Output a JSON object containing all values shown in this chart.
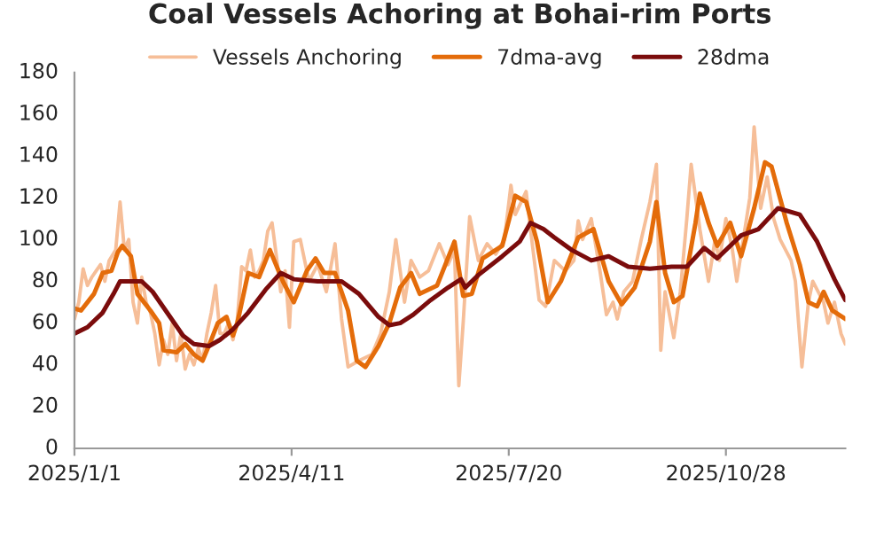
{
  "chart_data": {
    "type": "line",
    "title": "Coal Vessels Achoring at Bohai-rim Ports",
    "xlim": [
      "2025-01-01",
      "2025-12-22"
    ],
    "xticks": [
      {
        "value": "2025-01-01",
        "label": "2025/1/1"
      },
      {
        "value": "2025-04-11",
        "label": "2025/4/11"
      },
      {
        "value": "2025-07-20",
        "label": "2025/7/20"
      },
      {
        "value": "2025-10-28",
        "label": "2025/10/28"
      }
    ],
    "ylim": [
      0,
      180
    ],
    "yticks": [
      0,
      20,
      40,
      60,
      80,
      100,
      120,
      140,
      160,
      180
    ],
    "grid": false,
    "legend": "top",
    "marker": "none",
    "line_style": "solid",
    "series": [
      {
        "name": "Vessels Anchoring",
        "color": "#f6be98",
        "x": [
          "2025-01-01",
          "2025-01-03",
          "2025-01-05",
          "2025-01-07",
          "2025-01-09",
          "2025-01-11",
          "2025-01-13",
          "2025-01-15",
          "2025-01-17",
          "2025-01-20",
          "2025-01-22",
          "2025-01-24",
          "2025-01-26",
          "2025-01-28",
          "2025-01-30",
          "2025-02-01",
          "2025-02-03",
          "2025-02-05",
          "2025-02-07",
          "2025-02-09",
          "2025-02-11",
          "2025-02-13",
          "2025-02-15",
          "2025-02-17",
          "2025-02-19",
          "2025-02-21",
          "2025-02-23",
          "2025-02-25",
          "2025-02-27",
          "2025-03-01",
          "2025-03-03",
          "2025-03-05",
          "2025-03-07",
          "2025-03-09",
          "2025-03-11",
          "2025-03-13",
          "2025-03-15",
          "2025-03-17",
          "2025-03-19",
          "2025-03-21",
          "2025-03-23",
          "2025-03-25",
          "2025-03-27",
          "2025-03-29",
          "2025-03-31",
          "2025-04-02",
          "2025-04-04",
          "2025-04-06",
          "2025-04-08",
          "2025-04-10",
          "2025-04-12",
          "2025-04-15",
          "2025-04-19",
          "2025-04-23",
          "2025-04-27",
          "2025-05-01",
          "2025-05-04",
          "2025-05-07",
          "2025-05-12",
          "2025-05-18",
          "2025-05-22",
          "2025-05-26",
          "2025-05-29",
          "2025-06-02",
          "2025-06-05",
          "2025-06-09",
          "2025-06-13",
          "2025-06-18",
          "2025-06-22",
          "2025-06-25",
          "2025-06-27",
          "2025-06-29",
          "2025-07-02",
          "2025-07-06",
          "2025-07-10",
          "2025-07-14",
          "2025-07-18",
          "2025-07-21",
          "2025-07-23",
          "2025-07-28",
          "2025-07-30",
          "2025-08-03",
          "2025-08-06",
          "2025-08-10",
          "2025-08-15",
          "2025-08-19",
          "2025-08-21",
          "2025-08-23",
          "2025-08-27",
          "2025-08-31",
          "2025-09-03",
          "2025-09-06",
          "2025-09-08",
          "2025-09-11",
          "2025-09-15",
          "2025-09-19",
          "2025-09-23",
          "2025-09-26",
          "2025-09-28",
          "2025-09-30",
          "2025-10-04",
          "2025-10-07",
          "2025-10-10",
          "2025-10-12",
          "2025-10-16",
          "2025-10-20",
          "2025-10-23",
          "2025-10-25",
          "2025-10-28",
          "2025-10-31",
          "2025-11-02",
          "2025-11-05",
          "2025-11-08",
          "2025-11-10",
          "2025-11-13",
          "2025-11-16",
          "2025-11-19",
          "2025-11-22",
          "2025-11-27",
          "2025-11-29",
          "2025-12-02",
          "2025-12-05",
          "2025-12-07",
          "2025-12-12",
          "2025-12-14",
          "2025-12-17",
          "2025-12-20",
          "2025-12-22"
        ],
        "values": [
          62,
          70,
          86,
          78,
          82,
          85,
          88,
          80,
          90,
          95,
          118,
          95,
          100,
          70,
          60,
          82,
          70,
          65,
          55,
          40,
          52,
          45,
          60,
          42,
          55,
          38,
          45,
          40,
          48,
          42,
          55,
          65,
          78,
          55,
          55,
          60,
          52,
          62,
          87,
          85,
          95,
          82,
          85,
          90,
          104,
          108,
          92,
          75,
          85,
          58,
          99,
          100,
          80,
          88,
          75,
          98,
          62,
          39,
          42,
          45,
          55,
          75,
          100,
          70,
          90,
          82,
          85,
          98,
          88,
          95,
          30,
          60,
          111,
          90,
          98,
          93,
          100,
          126,
          112,
          123,
          105,
          71,
          68,
          90,
          85,
          90,
          109,
          100,
          110,
          85,
          64,
          70,
          62,
          75,
          80,
          100,
          118,
          136,
          47,
          75,
          53,
          75,
          110,
          136,
          105,
          80,
          100,
          90,
          110,
          95,
          80,
          100,
          120,
          154,
          115,
          130,
          110,
          100,
          90,
          80,
          39,
          70,
          80,
          70,
          60,
          70,
          55,
          50
        ]
      },
      {
        "name": "7dma-avg",
        "color": "#e46c0a",
        "x": [
          "2025-01-01",
          "2025-01-04",
          "2025-01-10",
          "2025-01-14",
          "2025-01-18",
          "2025-01-21",
          "2025-01-23",
          "2025-01-27",
          "2025-01-30",
          "2025-02-05",
          "2025-02-09",
          "2025-02-11",
          "2025-02-17",
          "2025-02-21",
          "2025-02-25",
          "2025-03-01",
          "2025-03-05",
          "2025-03-08",
          "2025-03-12",
          "2025-03-15",
          "2025-03-17",
          "2025-03-22",
          "2025-03-27",
          "2025-04-01",
          "2025-04-07",
          "2025-04-12",
          "2025-04-18",
          "2025-04-22",
          "2025-04-26",
          "2025-05-01",
          "2025-05-07",
          "2025-05-11",
          "2025-05-15",
          "2025-05-21",
          "2025-05-26",
          "2025-05-31",
          "2025-06-05",
          "2025-06-09",
          "2025-06-17",
          "2025-06-25",
          "2025-06-29",
          "2025-07-03",
          "2025-07-08",
          "2025-07-17",
          "2025-07-23",
          "2025-07-28",
          "2025-08-02",
          "2025-08-07",
          "2025-08-13",
          "2025-08-21",
          "2025-08-28",
          "2025-09-04",
          "2025-09-10",
          "2025-09-16",
          "2025-09-23",
          "2025-09-26",
          "2025-09-30",
          "2025-10-04",
          "2025-10-08",
          "2025-10-14",
          "2025-10-16",
          "2025-10-20",
          "2025-10-24",
          "2025-10-30",
          "2025-11-04",
          "2025-11-10",
          "2025-11-15",
          "2025-11-18",
          "2025-11-25",
          "2025-12-01",
          "2025-12-05",
          "2025-12-09",
          "2025-12-12",
          "2025-12-16",
          "2025-12-22"
        ],
        "values": [
          67,
          66,
          74,
          84,
          85,
          94,
          97,
          92,
          74,
          66,
          60,
          47,
          46,
          50,
          45,
          42,
          52,
          60,
          63,
          54,
          60,
          84,
          82,
          95,
          80,
          70,
          85,
          91,
          84,
          84,
          66,
          42,
          39,
          49,
          60,
          77,
          84,
          74,
          78,
          99,
          73,
          74,
          91,
          97,
          121,
          118,
          99,
          70,
          80,
          101,
          105,
          80,
          69,
          77,
          99,
          118,
          84,
          70,
          73,
          108,
          122,
          108,
          97,
          108,
          92,
          115,
          137,
          135,
          108,
          88,
          70,
          68,
          75,
          66,
          62
        ]
      },
      {
        "name": "28dma",
        "color": "#7b0c0c",
        "x": [
          "2025-01-01",
          "2025-01-07",
          "2025-01-14",
          "2025-01-19",
          "2025-01-22",
          "2025-02-01",
          "2025-02-06",
          "2025-02-14",
          "2025-02-20",
          "2025-02-25",
          "2025-03-04",
          "2025-03-09",
          "2025-03-15",
          "2025-03-22",
          "2025-03-30",
          "2025-04-06",
          "2025-04-12",
          "2025-04-23",
          "2025-05-04",
          "2025-05-12",
          "2025-05-21",
          "2025-05-26",
          "2025-05-31",
          "2025-06-06",
          "2025-06-14",
          "2025-06-22",
          "2025-06-28",
          "2025-06-30",
          "2025-07-06",
          "2025-07-17",
          "2025-07-25",
          "2025-07-30",
          "2025-08-05",
          "2025-08-10",
          "2025-08-18",
          "2025-08-27",
          "2025-09-04",
          "2025-09-13",
          "2025-09-23",
          "2025-10-03",
          "2025-10-10",
          "2025-10-18",
          "2025-10-24",
          "2025-11-04",
          "2025-11-12",
          "2025-11-21",
          "2025-12-01",
          "2025-12-09",
          "2025-12-17",
          "2025-12-22"
        ],
        "values": [
          55,
          58,
          65,
          74,
          80,
          80,
          75,
          63,
          54,
          50,
          49,
          52,
          57,
          65,
          76,
          84,
          81,
          80,
          80,
          74,
          63,
          59,
          60,
          64,
          71,
          77,
          81,
          77,
          83,
          92,
          99,
          108,
          105,
          101,
          95,
          90,
          92,
          87,
          86,
          87,
          87,
          96,
          91,
          102,
          105,
          115,
          112,
          99,
          81,
          71
        ]
      }
    ]
  }
}
